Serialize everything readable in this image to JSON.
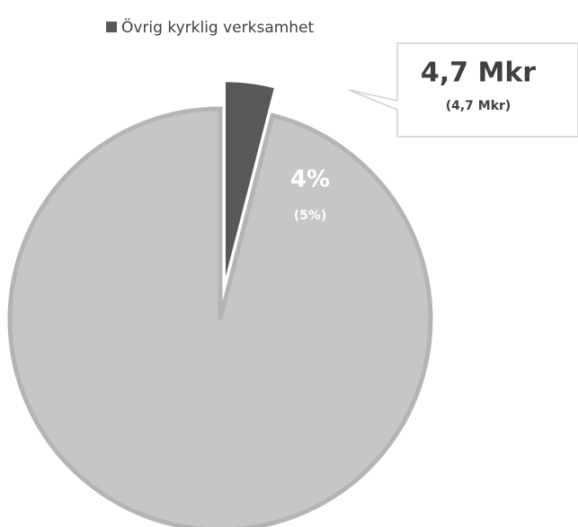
{
  "chart_data": {
    "type": "pie",
    "categories": [
      "Övrig kyrklig verksamhet",
      null
    ],
    "values": [
      4,
      96
    ],
    "value_labels": [
      "4%",
      null
    ],
    "secondary_labels": [
      "(5%)",
      null
    ],
    "colors": [
      "#585858",
      "#c6c6c6"
    ],
    "callout": {
      "text": "4,7 Mkr",
      "subtext": "(4,7 Mkr)"
    },
    "legend": "top"
  }
}
